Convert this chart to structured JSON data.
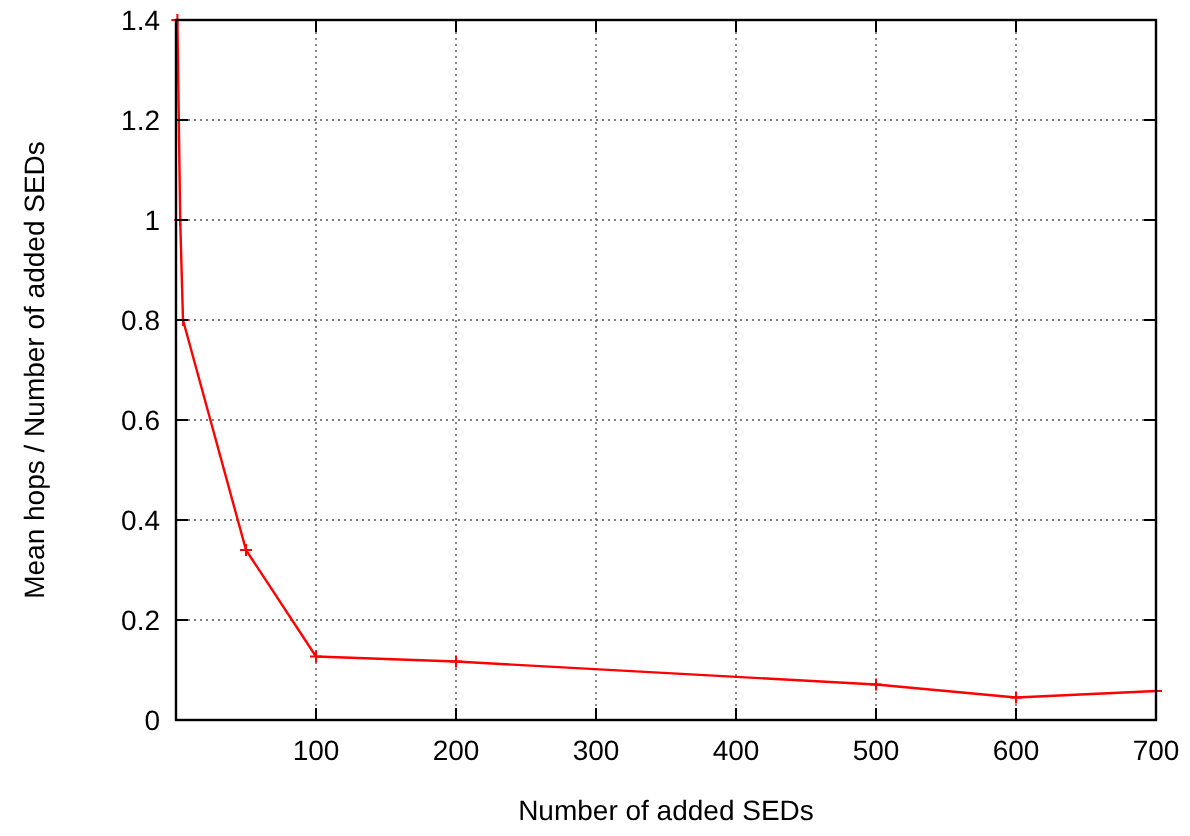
{
  "chart_data": {
    "type": "line",
    "xlabel": "Number of added SEDs",
    "ylabel": "Mean hops / Number of added SEDs",
    "x": [
      1,
      3,
      5,
      50,
      100,
      200,
      500,
      600,
      700
    ],
    "series": [
      {
        "color": "#ff0000",
        "values": [
          1.4,
          1.0,
          0.8,
          0.34,
          0.127,
          0.117,
          0.071,
          0.045,
          0.058
        ]
      }
    ],
    "xlim": [
      0,
      700
    ],
    "xticks": [
      100,
      200,
      300,
      400,
      500,
      600,
      700
    ],
    "ylim": [
      0,
      1.4
    ],
    "yticks": [
      0,
      0.2,
      0.4,
      0.6,
      0.8,
      1,
      1.2,
      1.4
    ],
    "grid": true,
    "marker": "cross",
    "line_style": "solid"
  }
}
